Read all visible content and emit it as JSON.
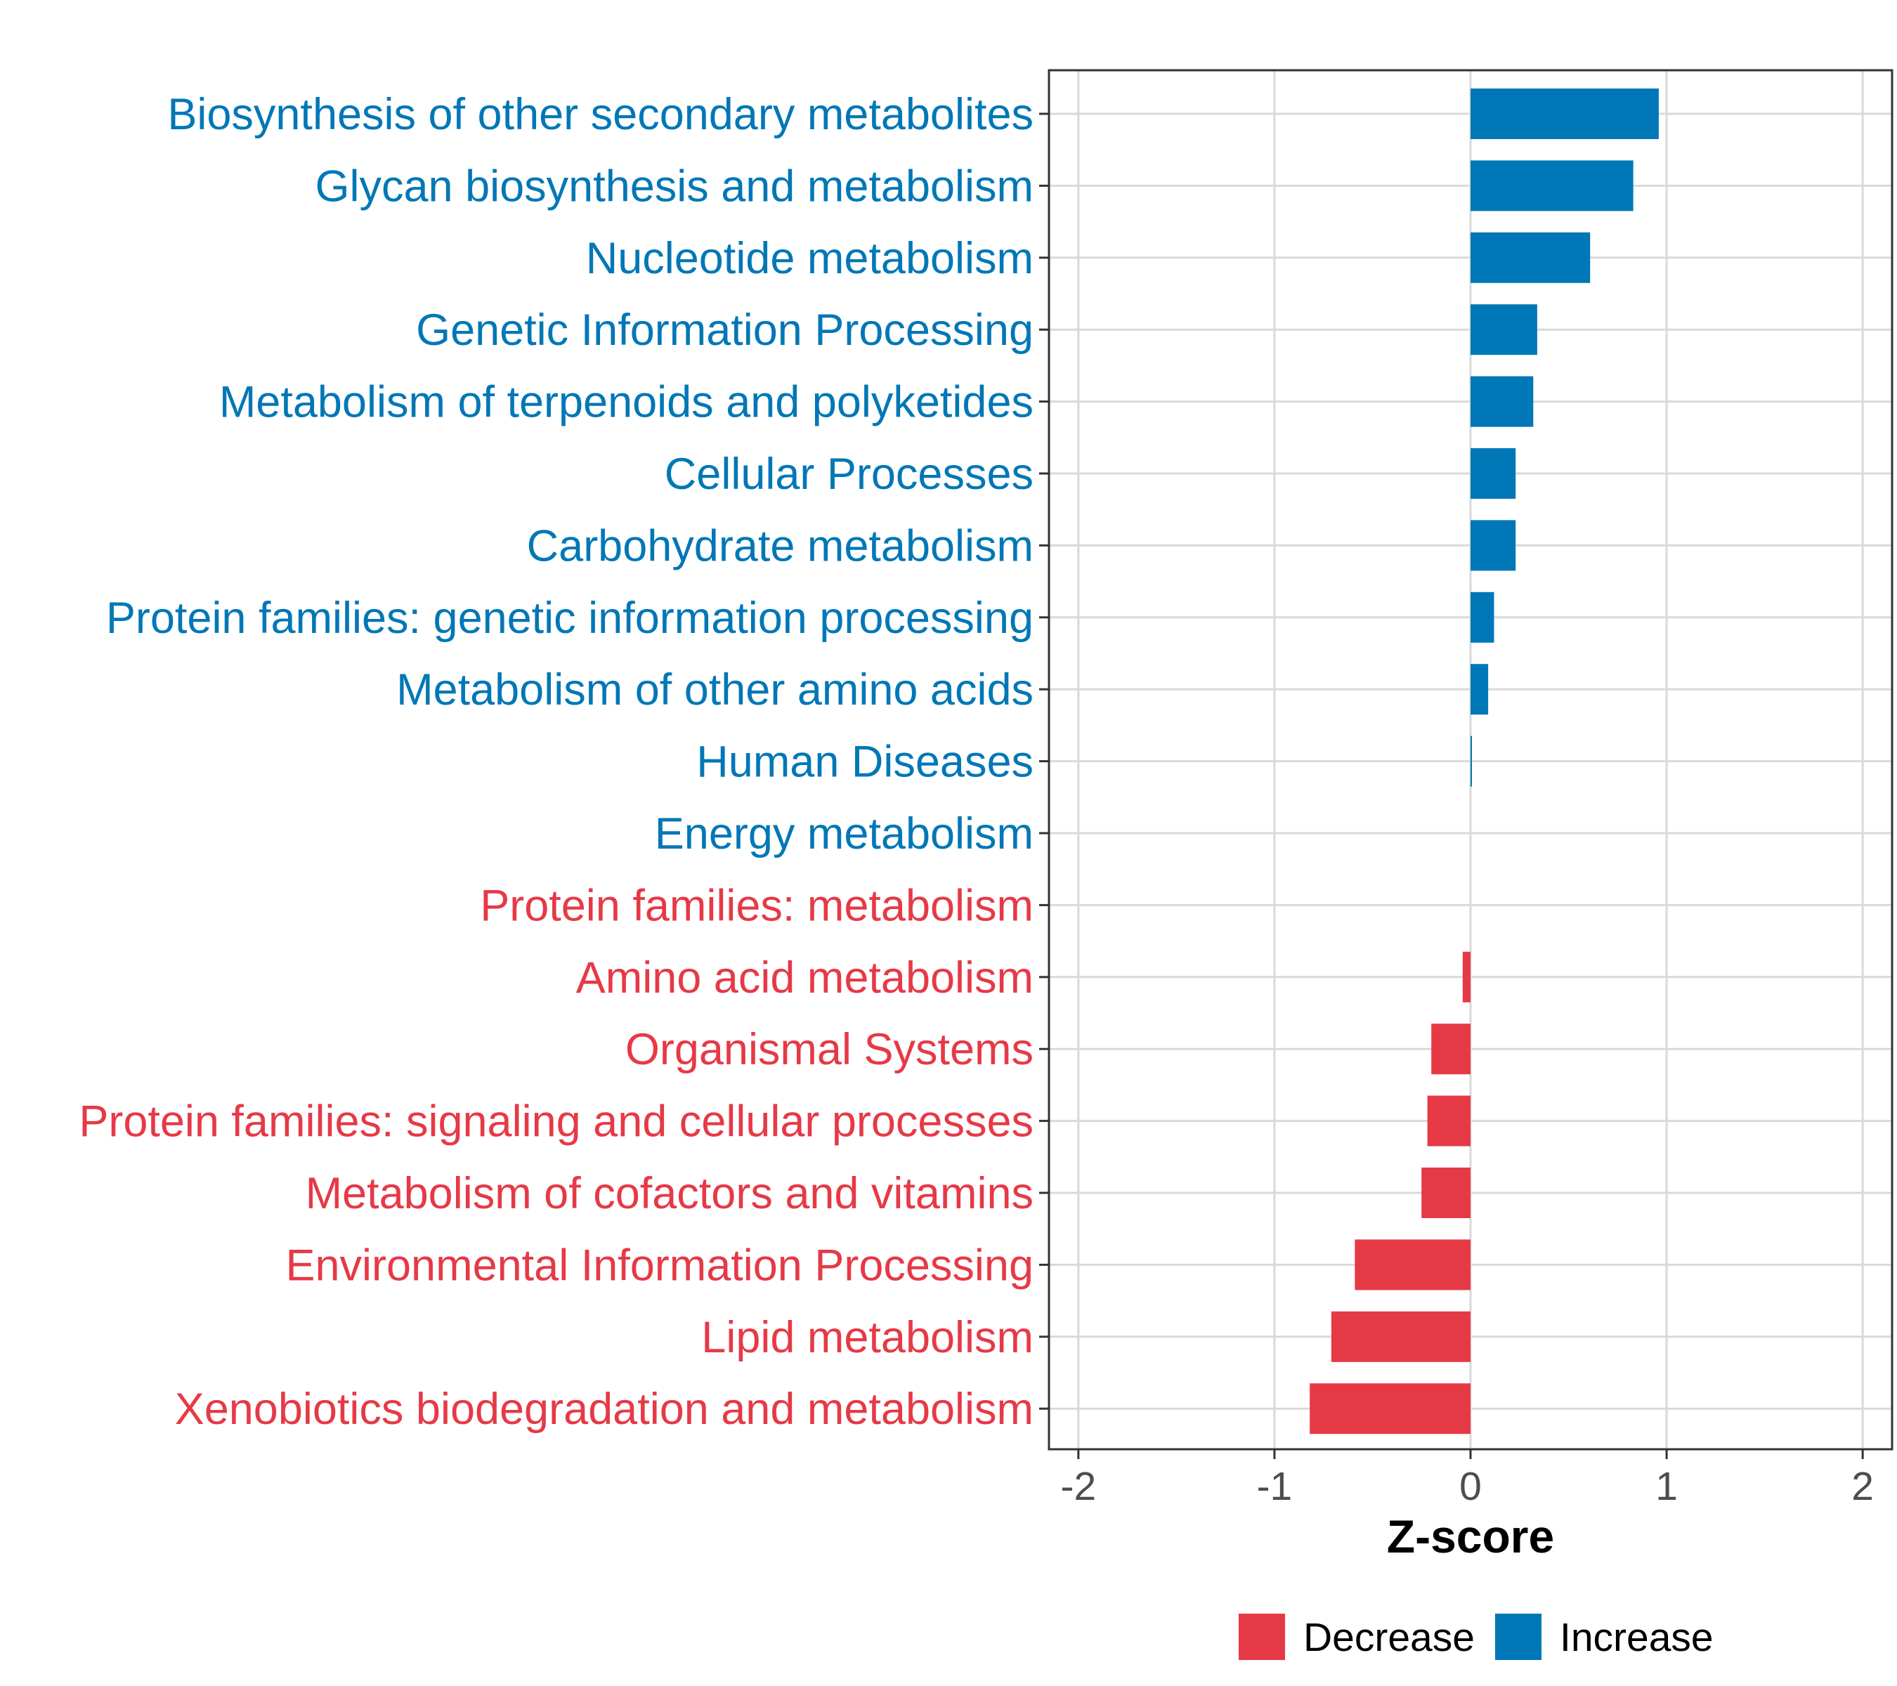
{
  "chart_data": {
    "type": "bar",
    "orientation": "horizontal",
    "title": "",
    "xlabel": "Z-score",
    "ylabel": "",
    "xlim": [
      -2.15,
      2.15
    ],
    "xticks": [
      -2,
      -1,
      0,
      1,
      2
    ],
    "xtick_labels": [
      "-2",
      "-1",
      "0",
      "1",
      "2"
    ],
    "grid": true,
    "categories": [
      "Biosynthesis of other secondary metabolites",
      "Glycan biosynthesis and metabolism",
      "Nucleotide metabolism",
      "Genetic Information Processing",
      "Metabolism of terpenoids and polyketides",
      "Cellular Processes",
      "Carbohydrate metabolism",
      "Protein families: genetic information processing",
      "Metabolism of other amino acids",
      "Human Diseases",
      "Energy metabolism",
      "Protein families: metabolism",
      "Amino acid metabolism",
      "Organismal Systems",
      "Protein families: signaling and cellular processes",
      "Metabolism of cofactors and vitamins",
      "Environmental Information Processing",
      "Lipid metabolism",
      "Xenobiotics biodegradation and metabolism"
    ],
    "values": [
      0.96,
      0.83,
      0.61,
      0.34,
      0.32,
      0.23,
      0.23,
      0.12,
      0.09,
      0.005,
      0.0,
      0.0,
      -0.04,
      -0.2,
      -0.22,
      -0.25,
      -0.59,
      -0.71,
      -0.82
    ],
    "groups": [
      "Increase",
      "Increase",
      "Increase",
      "Increase",
      "Increase",
      "Increase",
      "Increase",
      "Increase",
      "Increase",
      "Increase",
      "Increase",
      "Decrease",
      "Decrease",
      "Decrease",
      "Decrease",
      "Decrease",
      "Decrease",
      "Decrease",
      "Decrease"
    ],
    "legend": {
      "placement": "bottom",
      "entries": [
        {
          "name": "Decrease",
          "color": "#e63946"
        },
        {
          "name": "Increase",
          "color": "#0077b6"
        }
      ]
    }
  }
}
